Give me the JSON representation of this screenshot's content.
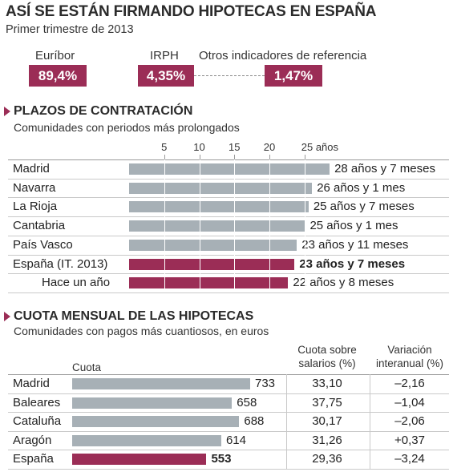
{
  "header": {
    "title": "ASÍ SE ESTÁN FIRMANDO HIPOTECAS EN ESPAÑA",
    "subtitle": "Primer trimestre de 2013"
  },
  "indicators": [
    {
      "label": "Euríbor",
      "value": "89,4%"
    },
    {
      "label": "IRPH",
      "value": "4,35%"
    },
    {
      "label": "Otros indicadores de referencia",
      "value": "1,47%"
    }
  ],
  "plazos": {
    "title": "PLAZOS DE CONTRATACIÓN",
    "subtitle": "Comunidades con periodos más prolongados",
    "axis_ticks": [
      "5",
      "10",
      "15",
      "20",
      "25 años"
    ]
  },
  "cuota": {
    "title": "CUOTA MENSUAL DE LAS HIPOTECAS",
    "subtitle": "Comunidades con pagos más cuantiosos, en euros",
    "col_cuota": "Cuota",
    "col_salarios": "Cuota sobre salarios (%)",
    "col_variacion": "Variación interanual (%)"
  },
  "chart_data": [
    {
      "type": "bar",
      "title": "PLAZOS DE CONTRATACIÓN",
      "subtitle": "Comunidades con periodos más prolongados",
      "xunit": "años",
      "xlim": [
        0,
        29
      ],
      "ticks": [
        5,
        10,
        15,
        20,
        25
      ],
      "categories": [
        "Madrid",
        "Navarra",
        "La Rioja",
        "Cantabria",
        "País Vasco",
        "España (IT. 2013)",
        "Hace un año"
      ],
      "values": [
        28.58,
        26.08,
        25.58,
        25.08,
        23.92,
        23.58,
        22.67
      ],
      "labels": [
        "28 años y 7 meses",
        "26 años y 1 mes",
        "25 años y 7 meses",
        "25 años y 1 mes",
        "23 años y 11 meses",
        "23 años y 7 meses",
        "22 años y 8 meses"
      ],
      "highlight": [
        false,
        false,
        false,
        false,
        false,
        true,
        true
      ],
      "colors": {
        "normal": "#a7b0b6",
        "highlight": "#9b2d56"
      }
    },
    {
      "type": "bar",
      "title": "CUOTA MENSUAL DE LAS HIPOTECAS",
      "subtitle": "Comunidades con pagos más cuantiosos, en euros",
      "xlim": [
        0,
        733
      ],
      "categories": [
        "Madrid",
        "Baleares",
        "Cataluña",
        "Aragón",
        "España"
      ],
      "values": [
        733,
        658,
        688,
        614,
        553
      ],
      "labels": [
        "733",
        "658",
        "688",
        "614",
        "553"
      ],
      "cuota_sobre_salarios": [
        "33,10",
        "37,75",
        "30,17",
        "31,26",
        "29,36"
      ],
      "variacion_interanual": [
        "–2,16",
        "–1,04",
        "–2,06",
        "+0,37",
        "–3,24"
      ],
      "highlight": [
        false,
        false,
        false,
        false,
        true
      ],
      "colors": {
        "normal": "#a7b0b6",
        "highlight": "#9b2d56"
      }
    }
  ]
}
